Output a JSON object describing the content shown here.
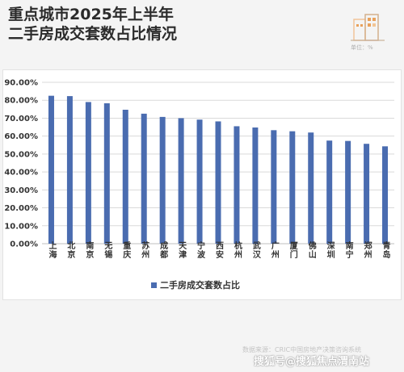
{
  "header": {
    "title_line1": "重点城市2025年上半年",
    "title_line2": "二手房成交套数占比情况",
    "unit_label": "单位：%"
  },
  "footer": {
    "source": "数据来源：CRIC中国房地产决策咨询系统",
    "watermark": "搜狐号@搜狐焦点渭南站"
  },
  "colors": {
    "bar": "#4a6cb0",
    "grid": "#d9d9d9",
    "axis_text": "#333333"
  },
  "chart_data": {
    "type": "bar",
    "title": "",
    "xlabel": "",
    "ylabel": "",
    "ylim": [
      0,
      90
    ],
    "yticks": [
      "0.00%",
      "10.00%",
      "20.00%",
      "30.00%",
      "40.00%",
      "50.00%",
      "60.00%",
      "70.00%",
      "80.00%",
      "90.00%"
    ],
    "grid": true,
    "legend_position": "bottom",
    "categories": [
      "上海",
      "北京",
      "南京",
      "无锡",
      "重庆",
      "苏州",
      "成都",
      "天津",
      "宁波",
      "西安",
      "杭州",
      "武汉",
      "广州",
      "厦门",
      "佛山",
      "深圳",
      "南宁",
      "郑州",
      "青岛"
    ],
    "series": [
      {
        "name": "二手房成交套数占比",
        "values": [
          82.5,
          82.3,
          79.0,
          78.3,
          74.7,
          72.5,
          70.7,
          70.0,
          69.2,
          68.2,
          65.5,
          64.8,
          63.3,
          62.7,
          62.0,
          57.5,
          57.3,
          55.7,
          54.3
        ]
      }
    ]
  }
}
